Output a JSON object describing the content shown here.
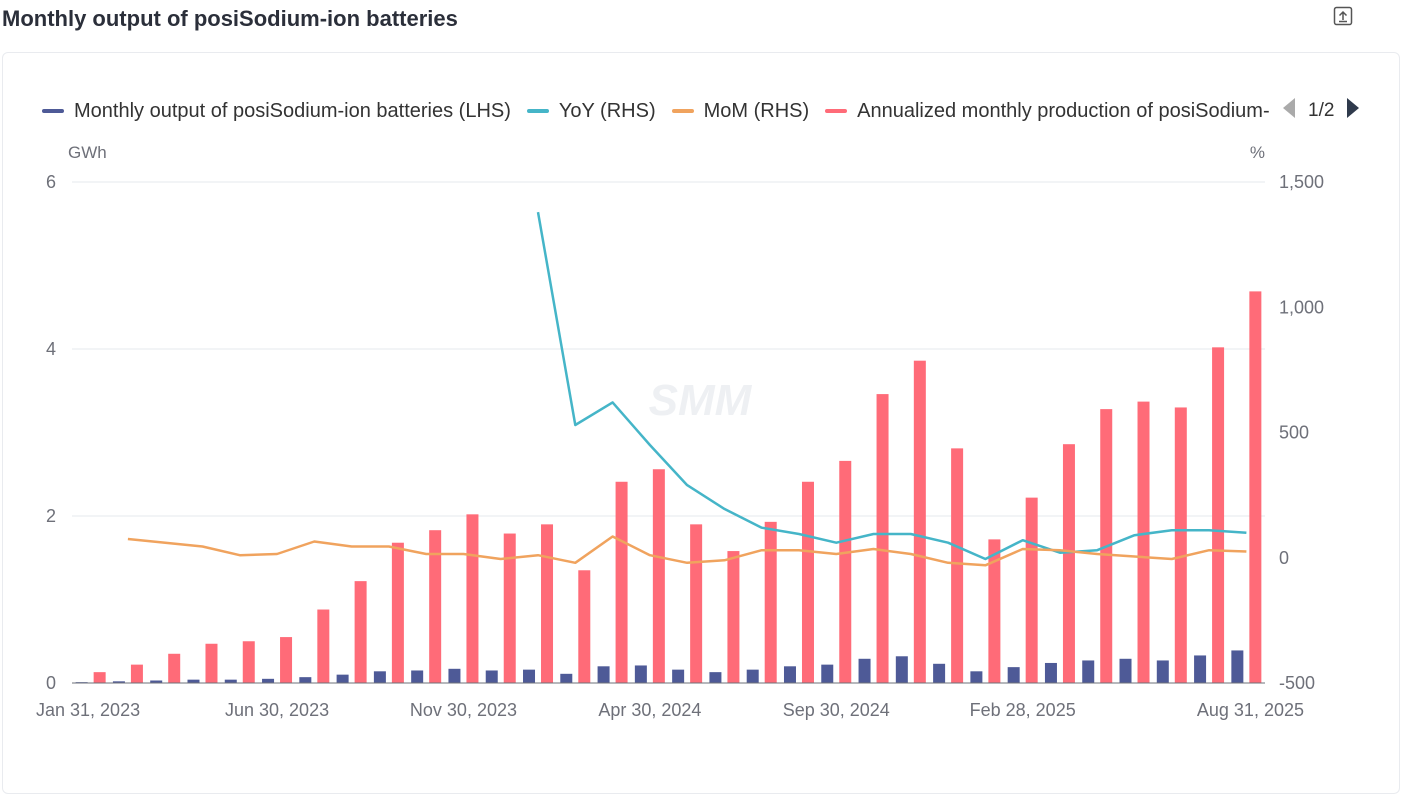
{
  "title": "Monthly output of posiSodium-ion batteries",
  "export_icon": "export-icon",
  "legend": {
    "page": "1/2",
    "prev_icon": "triangle-left-icon",
    "next_icon": "triangle-right-icon"
  },
  "colors": {
    "output": "#4e5a97",
    "yoy": "#45b5c8",
    "mom": "#f0a35e",
    "annualized": "#ff6b78",
    "grid": "#e6e8ec",
    "axis": "#6e7079"
  },
  "chart_data": {
    "type": "bar",
    "left_unit": "GWh",
    "right_unit": "%",
    "left_ylim": [
      0,
      6
    ],
    "left_ticks": [
      "0",
      "2",
      "4",
      "6"
    ],
    "left_tick_values": [
      0,
      2,
      4,
      6
    ],
    "right_ylim": [
      -500,
      1500
    ],
    "right_ticks": [
      "-500",
      "0",
      "500",
      "1,000",
      "1,500"
    ],
    "right_tick_values": [
      -500,
      0,
      500,
      1000,
      1500
    ],
    "x_tick_labels": [
      "Jan 31, 2023",
      "Jun 30, 2023",
      "Nov 30, 2023",
      "Apr 30, 2024",
      "Sep 30, 2024",
      "Feb 28, 2025",
      "Aug 31, 2025"
    ],
    "x_tick_indices": [
      0,
      5,
      10,
      15,
      20,
      25,
      31
    ],
    "categories": [
      "Jan 31, 2023",
      "Feb 28, 2023",
      "Mar 31, 2023",
      "Apr 30, 2023",
      "May 31, 2023",
      "Jun 30, 2023",
      "Jul 31, 2023",
      "Aug 31, 2023",
      "Sep 30, 2023",
      "Oct 31, 2023",
      "Nov 30, 2023",
      "Dec 31, 2023",
      "Jan 31, 2024",
      "Feb 29, 2024",
      "Mar 31, 2024",
      "Apr 30, 2024",
      "May 31, 2024",
      "Jun 30, 2024",
      "Jul 31, 2024",
      "Aug 31, 2024",
      "Sep 30, 2024",
      "Oct 31, 2024",
      "Nov 30, 2024",
      "Dec 31, 2024",
      "Jan 31, 2025",
      "Feb 28, 2025",
      "Mar 31, 2025",
      "Apr 30, 2025",
      "May 31, 2025",
      "Jun 30, 2025",
      "Jul 31, 2025",
      "Aug 31, 2025"
    ],
    "series": [
      {
        "name": "Monthly output of posiSodium-ion batteries (LHS)",
        "type": "bar",
        "axis": "left",
        "color": "#4e5a97",
        "values": [
          0.01,
          0.02,
          0.03,
          0.04,
          0.04,
          0.05,
          0.07,
          0.1,
          0.14,
          0.15,
          0.17,
          0.15,
          0.16,
          0.11,
          0.2,
          0.21,
          0.16,
          0.13,
          0.16,
          0.2,
          0.22,
          0.29,
          0.32,
          0.23,
          0.14,
          0.19,
          0.24,
          0.27,
          0.29,
          0.27,
          0.33,
          0.39
        ]
      },
      {
        "name": "YoY (RHS)",
        "type": "line",
        "axis": "right",
        "color": "#45b5c8",
        "values": [
          null,
          null,
          null,
          null,
          null,
          null,
          null,
          null,
          null,
          null,
          null,
          null,
          1380,
          530,
          620,
          450,
          290,
          195,
          120,
          95,
          60,
          95,
          95,
          60,
          -5,
          70,
          20,
          30,
          90,
          110,
          110,
          100
        ]
      },
      {
        "name": "MoM (RHS)",
        "type": "line",
        "axis": "right",
        "color": "#f0a35e",
        "values": [
          null,
          75,
          60,
          45,
          10,
          15,
          65,
          45,
          45,
          15,
          15,
          -5,
          10,
          -20,
          85,
          10,
          -20,
          -10,
          30,
          30,
          15,
          35,
          15,
          -20,
          -30,
          35,
          30,
          15,
          5,
          -5,
          30,
          25
        ]
      },
      {
        "name": "Annualized monthly production of posiSodium-ion batteries (LHS)",
        "type": "bar",
        "axis": "left",
        "color": "#ff6b78",
        "values": [
          0.13,
          0.22,
          0.35,
          0.47,
          0.5,
          0.55,
          0.88,
          1.22,
          1.68,
          1.83,
          2.02,
          1.79,
          1.9,
          1.35,
          2.41,
          2.56,
          1.9,
          1.58,
          1.93,
          2.41,
          2.66,
          3.46,
          3.86,
          2.81,
          1.72,
          2.22,
          2.86,
          3.28,
          3.37,
          3.3,
          4.02,
          4.69
        ]
      }
    ],
    "legend_position": "top",
    "grid": true
  }
}
